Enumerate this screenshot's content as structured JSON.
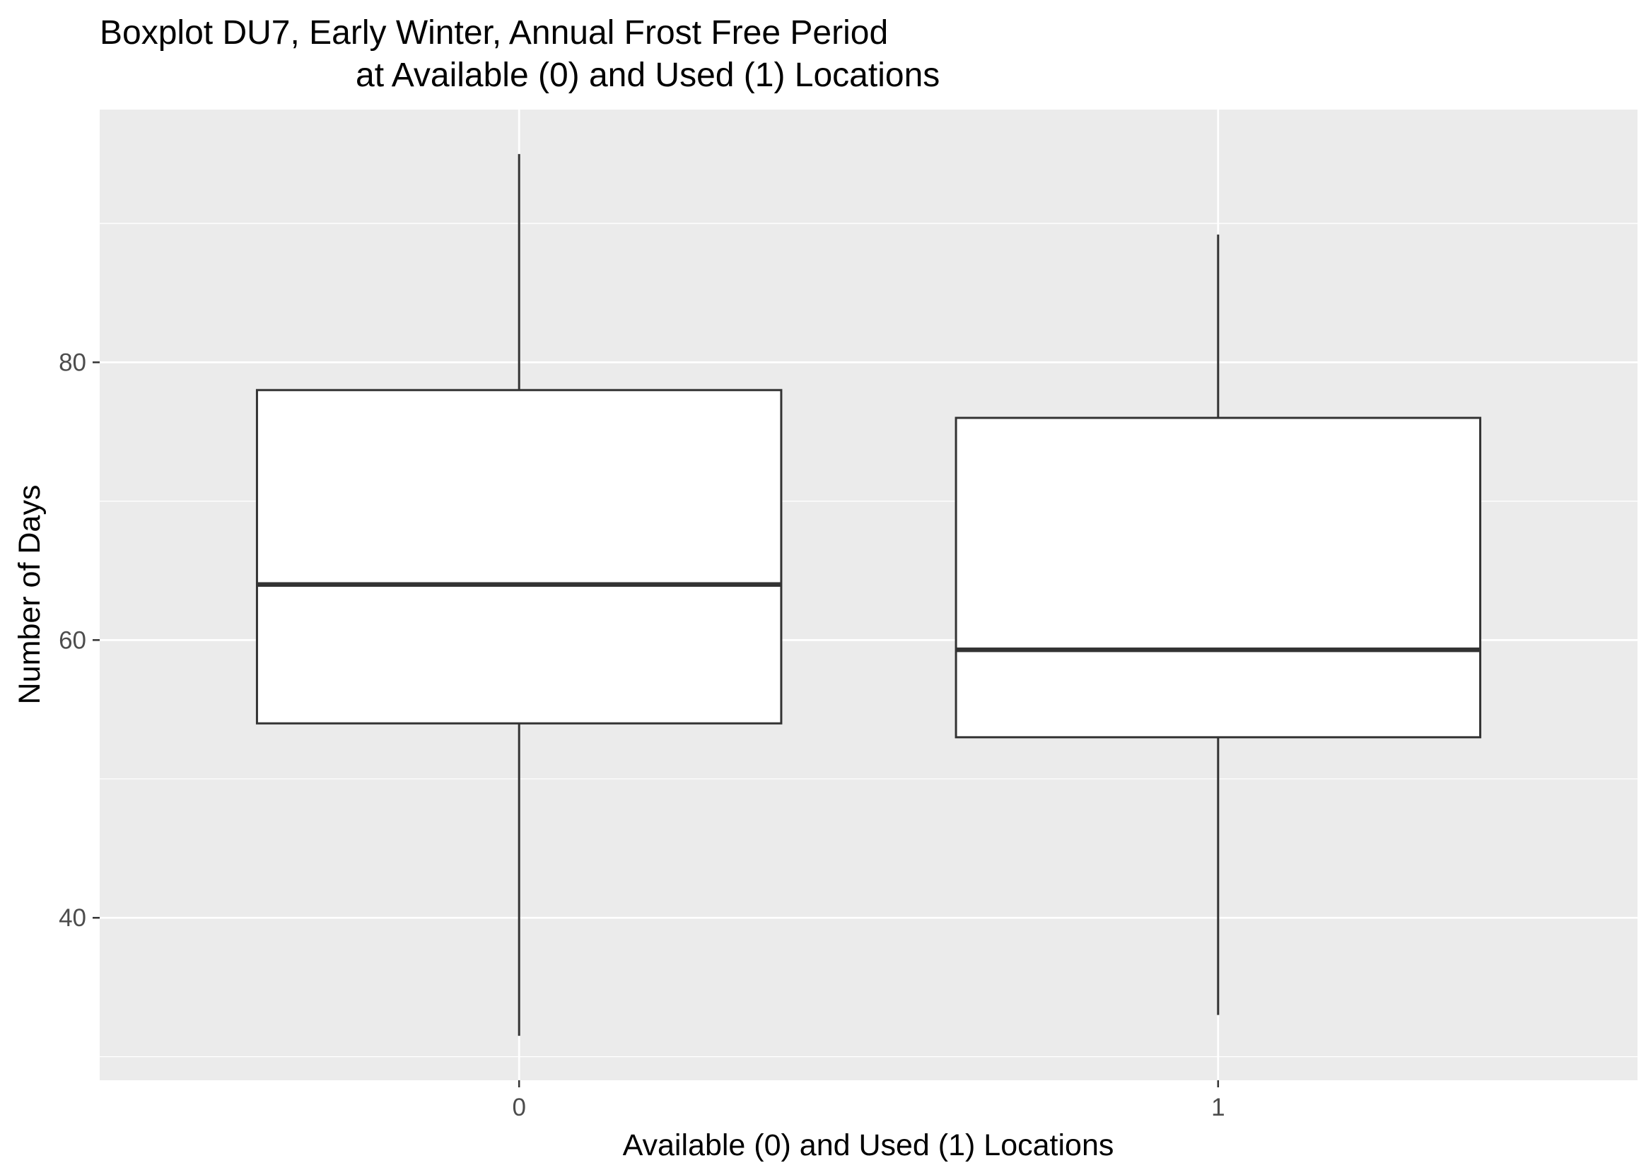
{
  "chart_data": {
    "type": "boxplot",
    "title": "Boxplot DU7, Early Winter, Annual Frost Free Period",
    "subtitle": "at Available (0) and Used (1) Locations",
    "xlabel": "Available (0) and Used (1) Locations",
    "ylabel": "Number of Days",
    "categories": [
      "0",
      "1"
    ],
    "boxes": [
      {
        "category": "0",
        "min": 31.5,
        "q1": 54,
        "median": 64,
        "q3": 78,
        "max": 95
      },
      {
        "category": "1",
        "min": 33,
        "q1": 53,
        "median": 59.3,
        "q3": 76,
        "max": 89.2
      }
    ],
    "ylim": [
      28.3,
      98.2
    ],
    "y_ticks": [
      40,
      60,
      80
    ],
    "y_minor_ticks": [
      30,
      50,
      70,
      90
    ],
    "grid": true,
    "colors": {
      "panel_background": "#ebebeb",
      "grid": "#ffffff",
      "box_fill": "#ffffff",
      "box_stroke": "#333333",
      "tick_text": "#4d4d4d",
      "tick_mark": "#333333"
    }
  }
}
